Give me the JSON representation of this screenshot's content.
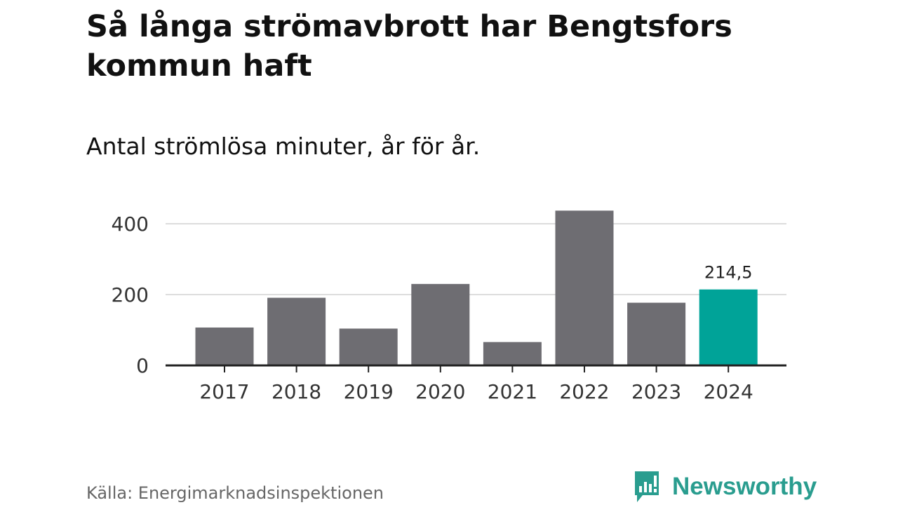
{
  "title": "Så långa strömavbrott har Bengtsfors kommun haft",
  "subtitle": "Antal strömlösa minuter, år för år.",
  "source": "Källa: Energimarknadsinspektionen",
  "brand": {
    "name": "Newsworthy",
    "icon": "newsworthy-logo-icon",
    "color": "#2a9d8f"
  },
  "colors": {
    "bar": "#6e6d72",
    "highlight": "#00a398",
    "grid": "#dddddd",
    "axis": "#222222"
  },
  "chart_data": {
    "type": "bar",
    "title": "Så långa strömavbrott har Bengtsfors kommun haft",
    "subtitle": "Antal strömlösa minuter, år för år.",
    "xlabel": "",
    "ylabel": "",
    "categories": [
      "2017",
      "2018",
      "2019",
      "2020",
      "2021",
      "2022",
      "2023",
      "2024"
    ],
    "values": [
      107,
      191,
      104,
      230,
      66,
      437,
      177,
      214.5
    ],
    "highlight_index": 7,
    "highlight_label": "214,5",
    "yticks": [
      0,
      200,
      400
    ],
    "ytick_labels": [
      "0",
      "200",
      "400"
    ],
    "ylim": [
      0,
      450
    ],
    "grid": true
  }
}
